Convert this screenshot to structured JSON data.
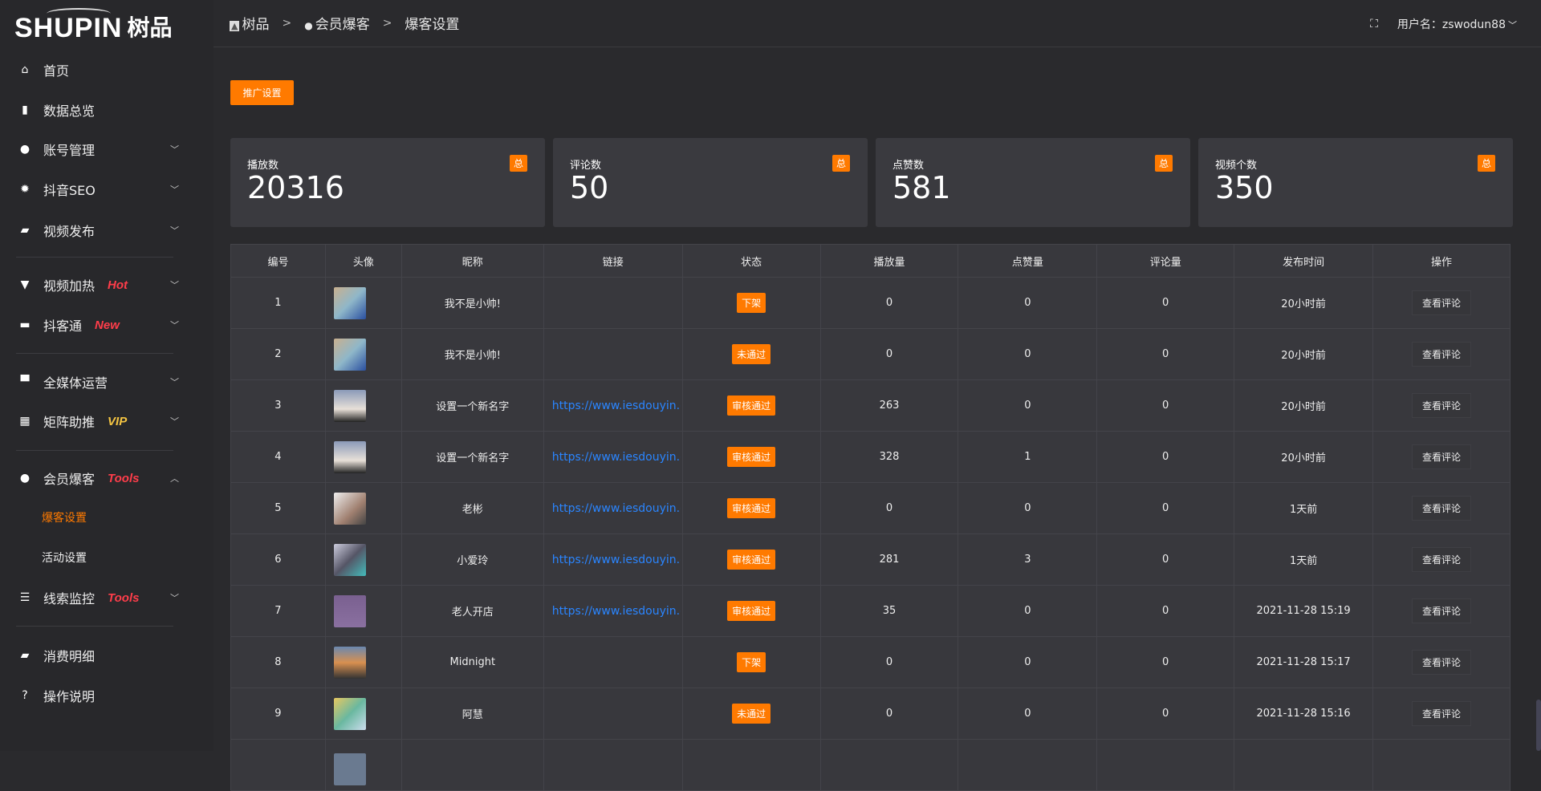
{
  "brand": {
    "logo_en": "SHUPIN",
    "logo_cn": "树品"
  },
  "sidebar": {
    "items": [
      {
        "label": "首页",
        "icon": "home-icon",
        "glyph": "⌂"
      },
      {
        "label": "数据总览",
        "icon": "bar-chart-icon",
        "glyph": "▮"
      },
      {
        "label": "账号管理",
        "icon": "user-icon",
        "glyph": "●",
        "chevron": "﹀"
      },
      {
        "label": "抖音SEO",
        "icon": "gear-icon",
        "glyph": "✹",
        "chevron": "﹀"
      },
      {
        "label": "视频发布",
        "icon": "camera-icon",
        "glyph": "▰",
        "chevron": "﹀"
      },
      {
        "label": "视频加热",
        "icon": "sign-icon",
        "glyph": "▼",
        "tag": "Hot",
        "chevron": "﹀"
      },
      {
        "label": "抖客通",
        "icon": "chat-icon",
        "glyph": "▬",
        "tag": "New",
        "chevron": "﹀"
      },
      {
        "label": "全媒体运营",
        "icon": "monitor-icon",
        "glyph": "▀",
        "chevron": "﹀"
      },
      {
        "label": "矩阵助推",
        "icon": "grid-icon",
        "glyph": "▦",
        "tag": "VIP",
        "chevron": "﹀"
      },
      {
        "label": "会员爆客",
        "icon": "user-icon",
        "glyph": "●",
        "tag": "Tools",
        "chevron": "︿"
      },
      {
        "label": "线索监控",
        "icon": "sliders-icon",
        "glyph": "☰",
        "tag": "Tools",
        "chevron": "﹀"
      },
      {
        "label": "消费明细",
        "icon": "wallet-icon",
        "glyph": "▰"
      },
      {
        "label": "操作说明",
        "icon": "help-icon",
        "glyph": "?"
      }
    ],
    "subitems": [
      {
        "label": "爆客设置",
        "active": true
      },
      {
        "label": "活动设置"
      }
    ],
    "tag_colors": {
      "Hot": "#ff3d4a",
      "New": "#ff3d4a",
      "VIP": "#f5c542",
      "Tools": "#ff3d4a"
    }
  },
  "breadcrumb": [
    {
      "label": "树品",
      "icon": "chart-icon"
    },
    {
      "label": "会员爆客",
      "icon": "user-icon"
    },
    {
      "label": "爆客设置"
    }
  ],
  "breadcrumb_sep": ">",
  "header": {
    "user_label": "用户名：zswodun88",
    "fullscreen_icon": "fullscreen-icon"
  },
  "promo_button": "推广设置",
  "stats": [
    {
      "label": "播放数",
      "value": "20316",
      "badge": "总"
    },
    {
      "label": "评论数",
      "value": "50",
      "badge": "总"
    },
    {
      "label": "点赞数",
      "value": "581",
      "badge": "总"
    },
    {
      "label": "视频个数",
      "value": "350",
      "badge": "总"
    }
  ],
  "table": {
    "columns": [
      "编号",
      "头像",
      "昵称",
      "链接",
      "状态",
      "播放量",
      "点赞量",
      "评论量",
      "发布时间",
      "操作"
    ],
    "action_label": "查看评论",
    "rows": [
      {
        "id": "1",
        "name": "我不是小帅!",
        "link": "",
        "status": "下架",
        "plays": "0",
        "likes": "0",
        "comments": "0",
        "time": "20小时前"
      },
      {
        "id": "2",
        "name": "我不是小帅!",
        "link": "",
        "status": "未通过",
        "plays": "0",
        "likes": "0",
        "comments": "0",
        "time": "20小时前"
      },
      {
        "id": "3",
        "name": "设置一个新名字",
        "link": "https://www.iesdouyin.c",
        "status": "审核通过",
        "plays": "263",
        "likes": "0",
        "comments": "0",
        "time": "20小时前"
      },
      {
        "id": "4",
        "name": "设置一个新名字",
        "link": "https://www.iesdouyin.c",
        "status": "审核通过",
        "plays": "328",
        "likes": "1",
        "comments": "0",
        "time": "20小时前"
      },
      {
        "id": "5",
        "name": "老彬",
        "link": "https://www.iesdouyin.c",
        "status": "审核通过",
        "plays": "0",
        "likes": "0",
        "comments": "0",
        "time": "1天前"
      },
      {
        "id": "6",
        "name": "小爱玲",
        "link": "https://www.iesdouyin.c",
        "status": "审核通过",
        "plays": "281",
        "likes": "3",
        "comments": "0",
        "time": "1天前"
      },
      {
        "id": "7",
        "name": "老人开店",
        "link": "https://www.iesdouyin.c",
        "status": "审核通过",
        "plays": "35",
        "likes": "0",
        "comments": "0",
        "time": "2021-11-28 15:19"
      },
      {
        "id": "8",
        "name": "Midnight",
        "link": "",
        "status": "下架",
        "plays": "0",
        "likes": "0",
        "comments": "0",
        "time": "2021-11-28 15:17"
      },
      {
        "id": "9",
        "name": "阿慧",
        "link": "",
        "status": "未通过",
        "plays": "0",
        "likes": "0",
        "comments": "0",
        "time": "2021-11-28 15:16"
      }
    ]
  },
  "colors": {
    "accent": "#ff7a00",
    "link": "#2a85ff",
    "background": "#2a2a2d",
    "card": "#3a3a3f"
  }
}
